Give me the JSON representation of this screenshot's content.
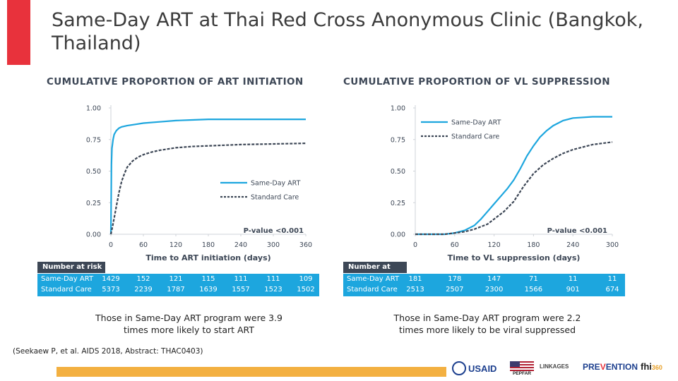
{
  "slide_title": "Same-Day ART at Thai Red Cross Anonymous Clinic (Bangkok, Thailand)",
  "colors": {
    "accent": "#e8323c",
    "same_day": "#1da6de",
    "standard": "#3d4756",
    "table_bg": "#1da6de",
    "footer_bar": "#f3b041"
  },
  "chart_data": [
    {
      "type": "line",
      "title": "CUMULATIVE PROPORTION OF ART INITIATION",
      "xlabel": "Time to ART initiation (days)",
      "ylabel": "",
      "xlim": [
        0,
        360
      ],
      "ylim": [
        0,
        1
      ],
      "x_ticks": [
        "0",
        "60",
        "120",
        "180",
        "240",
        "300",
        "360"
      ],
      "y_ticks": [
        "0.00",
        "0.25",
        "0.50",
        "0.75",
        "1.00"
      ],
      "y_tick_values": [
        0,
        0.25,
        0.5,
        0.75,
        1
      ],
      "legend": [
        "Same-Day ART",
        "Standard Care"
      ],
      "annotation": "P-value <0.001",
      "series": [
        {
          "name": "Same-Day ART",
          "style": "solid",
          "x": [
            0,
            1,
            2,
            4,
            6,
            10,
            15,
            20,
            30,
            45,
            60,
            90,
            120,
            150,
            180,
            240,
            300,
            360
          ],
          "y": [
            0,
            0.55,
            0.68,
            0.75,
            0.79,
            0.82,
            0.84,
            0.85,
            0.86,
            0.87,
            0.88,
            0.89,
            0.9,
            0.905,
            0.91,
            0.91,
            0.91,
            0.91
          ]
        },
        {
          "name": "Standard Care",
          "style": "dashed",
          "x": [
            0,
            3,
            7,
            10,
            15,
            20,
            25,
            30,
            40,
            50,
            60,
            75,
            90,
            105,
            120,
            150,
            180,
            210,
            240,
            300,
            360
          ],
          "y": [
            0,
            0.06,
            0.15,
            0.22,
            0.33,
            0.42,
            0.48,
            0.53,
            0.58,
            0.61,
            0.63,
            0.65,
            0.665,
            0.675,
            0.685,
            0.695,
            0.7,
            0.705,
            0.71,
            0.715,
            0.72
          ]
        }
      ],
      "number_at_risk": {
        "header": "Number at risk",
        "rows": [
          {
            "label": "Same-Day ART",
            "values": [
              "1429",
              "152",
              "121",
              "115",
              "111",
              "111",
              "109"
            ]
          },
          {
            "label": "Standard Care",
            "values": [
              "5373",
              "2239",
              "1787",
              "1639",
              "1557",
              "1523",
              "1502"
            ]
          }
        ]
      },
      "caption": "Those in Same-Day ART program were 3.9 times more likely to start ART"
    },
    {
      "type": "line",
      "title": "CUMULATIVE PROPORTION OF VL SUPPRESSION",
      "xlabel": "Time to VL suppression (days)",
      "ylabel": "",
      "xlim": [
        0,
        300
      ],
      "ylim": [
        0,
        1
      ],
      "x_ticks": [
        "0",
        "60",
        "120",
        "180",
        "240",
        "300"
      ],
      "y_ticks": [
        "0.00",
        "0.25",
        "0.50",
        "0.75",
        "1.00"
      ],
      "y_tick_values": [
        0,
        0.25,
        0.5,
        0.75,
        1
      ],
      "legend": [
        "Same-Day ART",
        "Standard Care"
      ],
      "annotation": "P-value <0.001",
      "series": [
        {
          "name": "Same-Day ART",
          "style": "solid",
          "x": [
            0,
            45,
            60,
            75,
            90,
            100,
            110,
            120,
            130,
            140,
            150,
            160,
            170,
            180,
            190,
            200,
            210,
            225,
            240,
            270,
            300
          ],
          "y": [
            0,
            0,
            0.01,
            0.03,
            0.07,
            0.12,
            0.18,
            0.24,
            0.3,
            0.36,
            0.43,
            0.52,
            0.62,
            0.7,
            0.77,
            0.82,
            0.86,
            0.9,
            0.92,
            0.93,
            0.93
          ]
        },
        {
          "name": "Standard Care",
          "style": "dashed",
          "x": [
            0,
            45,
            60,
            75,
            90,
            110,
            120,
            135,
            150,
            165,
            180,
            195,
            210,
            225,
            240,
            255,
            270,
            285,
            300
          ],
          "y": [
            0,
            0,
            0.01,
            0.02,
            0.04,
            0.08,
            0.12,
            0.18,
            0.26,
            0.38,
            0.48,
            0.55,
            0.6,
            0.64,
            0.67,
            0.69,
            0.71,
            0.72,
            0.73
          ]
        }
      ],
      "number_at_risk": {
        "header": "Number at risk",
        "rows": [
          {
            "label": "Same-Day ART",
            "values": [
              "181",
              "178",
              "147",
              "71",
              "11",
              "11"
            ]
          },
          {
            "label": "Standard Care",
            "values": [
              "2513",
              "2507",
              "2300",
              "1566",
              "901",
              "674"
            ]
          }
        ]
      },
      "caption": "Those in Same-Day ART program were 2.2 times more likely to be viral suppressed"
    }
  ],
  "citation": "(Seekaew P, et al. AIDS 2018, Abstract: THAC0403)",
  "logos": {
    "usaid": "USAID",
    "pepfar": "PEPFAR",
    "linkages": "LINKAGES",
    "prevention_pre": "PRE",
    "prevention_v": "V",
    "prevention_post": "ENTION",
    "fhi": "fhi",
    "fhi_num": "360"
  }
}
